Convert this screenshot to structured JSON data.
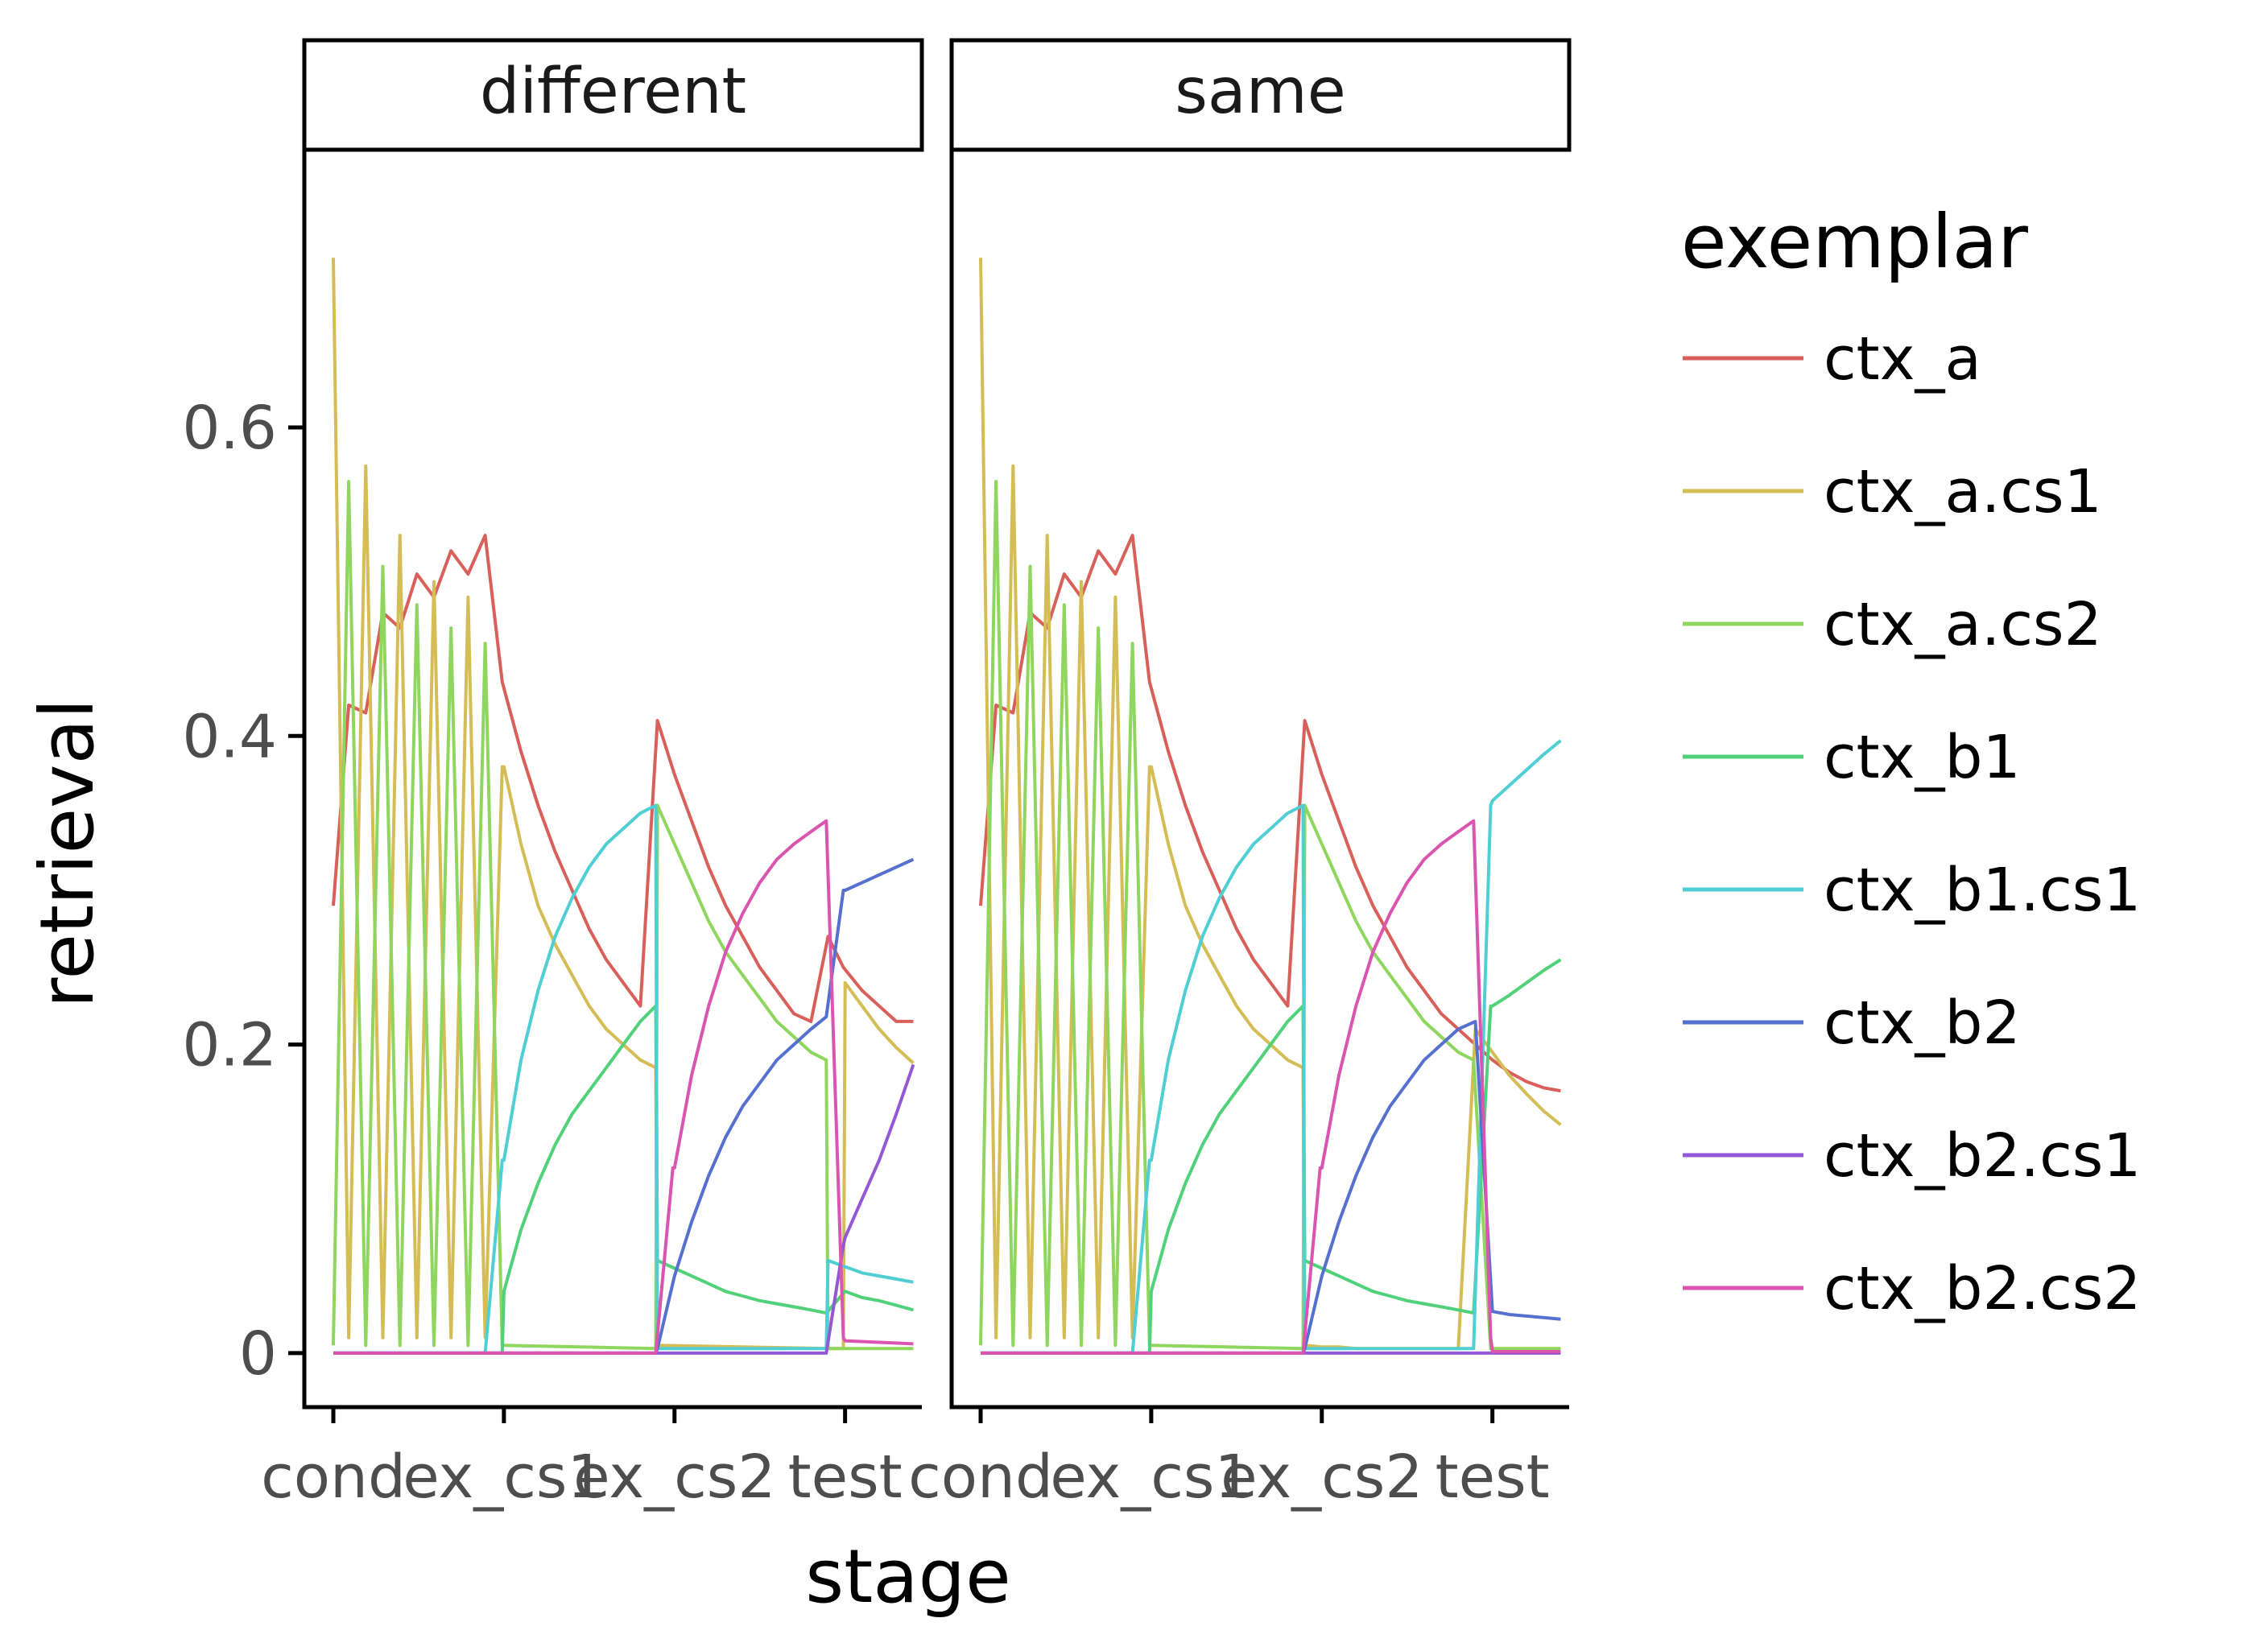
{
  "chart_data": {
    "type": "line",
    "xlabel": "stage",
    "ylabel": "retrieval",
    "x_tick_labels": [
      "cond",
      "ex_cs1",
      "ex_cs2",
      "test"
    ],
    "y_ticks": [
      0,
      0.2,
      0.4,
      0.6
    ],
    "y_tick_labels": [
      "0",
      "0.2",
      "0.4",
      "0.6"
    ],
    "ylim": [
      -0.035,
      0.78
    ],
    "xlim": [
      -0.17,
      3.45
    ],
    "grid": false,
    "legend": {
      "title": "exemplar",
      "placement": "right",
      "entries": [
        "ctx_a",
        "ctx_a.cs1",
        "ctx_a.cs2",
        "ctx_b1",
        "ctx_b1.cs1",
        "ctx_b2",
        "ctx_b2.cs1",
        "ctx_b2.cs2"
      ]
    },
    "colors": {
      "ctx_a": "#d9605a",
      "ctx_a.cs1": "#d4bd55",
      "ctx_a.cs2": "#8fd65e",
      "ctx_b1": "#50d17a",
      "ctx_b1.cs1": "#4fcfd4",
      "ctx_b2": "#5670cf",
      "ctx_b2.cs1": "#9458d4",
      "ctx_b2.cs2": "#d955b0"
    },
    "panels": [
      {
        "label": "different",
        "series": [
          {
            "name": "ctx_a",
            "x": [
              0,
              0.09,
              0.19,
              0.29,
              0.39,
              0.49,
              0.59,
              0.69,
              0.79,
              0.89,
              0.99,
              1.1,
              1.2,
              1.3,
              1.4,
              1.5,
              1.6,
              1.7,
              1.8,
              1.9,
              2.0,
              2.1,
              2.2,
              2.3,
              2.4,
              2.5,
              2.6,
              2.7,
              2.8,
              2.9,
              2.99,
              3.1,
              3.2,
              3.3,
              3.4
            ],
            "y": [
              0.29,
              0.42,
              0.415,
              0.48,
              0.47,
              0.505,
              0.49,
              0.52,
              0.505,
              0.53,
              0.435,
              0.39,
              0.355,
              0.325,
              0.3,
              0.275,
              0.255,
              0.24,
              0.225,
              0.41,
              0.375,
              0.345,
              0.315,
              0.29,
              0.27,
              0.25,
              0.235,
              0.22,
              0.215,
              0.27,
              0.25,
              0.235,
              0.225,
              0.215,
              0.215
            ]
          },
          {
            "name": "ctx_a.cs1",
            "x": [
              0,
              0.09,
              0.19,
              0.29,
              0.39,
              0.49,
              0.59,
              0.69,
              0.79,
              0.89,
              0.99,
              1.0,
              1.1,
              1.2,
              1.3,
              1.4,
              1.5,
              1.6,
              1.7,
              1.8,
              1.89,
              1.9,
              2.9,
              2.99,
              3.0,
              3.1,
              3.2,
              3.3,
              3.4
            ],
            "y": [
              0.71,
              0.01,
              0.575,
              0.01,
              0.53,
              0.01,
              0.5,
              0.01,
              0.49,
              0.01,
              0.38,
              0.38,
              0.33,
              0.29,
              0.265,
              0.245,
              0.225,
              0.21,
              0.2,
              0.19,
              0.185,
              0.005,
              0.003,
              0.003,
              0.24,
              0.225,
              0.21,
              0.198,
              0.188
            ]
          },
          {
            "name": "ctx_a.cs2",
            "x": [
              0,
              0.09,
              0.19,
              0.29,
              0.39,
              0.49,
              0.59,
              0.69,
              0.79,
              0.89,
              0.99,
              1.0,
              1.89,
              1.9,
              2.0,
              2.1,
              2.2,
              2.3,
              2.4,
              2.5,
              2.6,
              2.7,
              2.8,
              2.89,
              2.9,
              3.4
            ],
            "y": [
              0.005,
              0.565,
              0.005,
              0.51,
              0.005,
              0.485,
              0.005,
              0.47,
              0.005,
              0.46,
              0.005,
              0.005,
              0.003,
              0.355,
              0.33,
              0.305,
              0.28,
              0.26,
              0.245,
              0.23,
              0.215,
              0.205,
              0.195,
              0.19,
              0.003,
              0.003
            ]
          },
          {
            "name": "ctx_b1",
            "x": [
              0,
              0.99,
              1.0,
              1.1,
              1.2,
              1.3,
              1.4,
              1.5,
              1.6,
              1.7,
              1.8,
              1.89,
              1.9,
              2.0,
              2.1,
              2.2,
              2.3,
              2.4,
              2.5,
              2.6,
              2.7,
              2.8,
              2.89,
              3.0,
              3.1,
              3.2,
              3.3,
              3.4
            ],
            "y": [
              0,
              0,
              0.04,
              0.08,
              0.11,
              0.135,
              0.155,
              0.17,
              0.185,
              0.2,
              0.215,
              0.225,
              0.06,
              0.055,
              0.05,
              0.045,
              0.04,
              0.037,
              0.034,
              0.032,
              0.03,
              0.028,
              0.026,
              0.04,
              0.036,
              0.034,
              0.031,
              0.028
            ]
          },
          {
            "name": "ctx_b1.cs1",
            "x": [
              0,
              0.89,
              0.99,
              1.0,
              1.1,
              1.2,
              1.3,
              1.4,
              1.5,
              1.6,
              1.7,
              1.8,
              1.89,
              1.9,
              2.89,
              2.9,
              3.0,
              3.1,
              3.2,
              3.3,
              3.4
            ],
            "y": [
              0,
              0,
              0.125,
              0.125,
              0.19,
              0.235,
              0.27,
              0.295,
              0.315,
              0.33,
              0.34,
              0.35,
              0.355,
              0.003,
              0.003,
              0.06,
              0.056,
              0.052,
              0.05,
              0.048,
              0.046
            ]
          },
          {
            "name": "ctx_b2",
            "x": [
              0,
              1.89,
              1.9,
              2.0,
              2.1,
              2.2,
              2.3,
              2.4,
              2.5,
              2.6,
              2.7,
              2.8,
              2.89,
              2.99,
              3.0,
              3.1,
              3.2,
              3.3,
              3.4
            ],
            "y": [
              0,
              0,
              0.003,
              0.05,
              0.085,
              0.115,
              0.14,
              0.16,
              0.175,
              0.19,
              0.2,
              0.21,
              0.218,
              0.3,
              0.3,
              0.305,
              0.31,
              0.315,
              0.32
            ]
          },
          {
            "name": "ctx_b2.cs1",
            "x": [
              0,
              2.89,
              2.99,
              3.0,
              3.1,
              3.2,
              3.3,
              3.4
            ],
            "y": [
              0,
              0,
              0.07,
              0.075,
              0.1,
              0.125,
              0.155,
              0.187
            ]
          },
          {
            "name": "ctx_b2.cs2",
            "x": [
              0,
              1.89,
              1.99,
              2.0,
              2.1,
              2.2,
              2.3,
              2.4,
              2.5,
              2.6,
              2.7,
              2.8,
              2.89,
              2.99,
              3.0,
              3.4
            ],
            "y": [
              0,
              0,
              0.12,
              0.12,
              0.18,
              0.225,
              0.26,
              0.285,
              0.305,
              0.32,
              0.33,
              0.338,
              0.345,
              0.01,
              0.008,
              0.006
            ]
          }
        ]
      },
      {
        "label": "same",
        "series": [
          {
            "name": "ctx_a",
            "x": [
              0,
              0.09,
              0.19,
              0.29,
              0.39,
              0.49,
              0.59,
              0.69,
              0.79,
              0.89,
              0.99,
              1.1,
              1.2,
              1.3,
              1.4,
              1.5,
              1.6,
              1.7,
              1.8,
              1.9,
              2.0,
              2.1,
              2.2,
              2.3,
              2.4,
              2.5,
              2.6,
              2.7,
              2.8,
              2.9,
              3.0,
              3.1,
              3.2,
              3.3,
              3.4
            ],
            "y": [
              0.29,
              0.42,
              0.415,
              0.48,
              0.47,
              0.505,
              0.49,
              0.52,
              0.505,
              0.53,
              0.435,
              0.39,
              0.355,
              0.325,
              0.3,
              0.275,
              0.255,
              0.24,
              0.225,
              0.41,
              0.375,
              0.345,
              0.315,
              0.29,
              0.27,
              0.25,
              0.235,
              0.22,
              0.21,
              0.2,
              0.19,
              0.182,
              0.176,
              0.172,
              0.17
            ]
          },
          {
            "name": "ctx_a.cs1",
            "x": [
              0,
              0.09,
              0.19,
              0.29,
              0.39,
              0.49,
              0.59,
              0.69,
              0.79,
              0.89,
              0.99,
              1.0,
              1.1,
              1.2,
              1.3,
              1.4,
              1.5,
              1.6,
              1.7,
              1.8,
              1.89,
              1.9,
              2.0,
              2.1,
              2.2,
              2.3,
              2.4,
              2.5,
              2.6,
              2.7,
              2.8,
              2.9,
              3.0,
              3.1,
              3.2,
              3.3,
              3.4
            ],
            "y": [
              0.71,
              0.01,
              0.575,
              0.01,
              0.53,
              0.01,
              0.5,
              0.01,
              0.49,
              0.01,
              0.38,
              0.38,
              0.33,
              0.29,
              0.265,
              0.245,
              0.225,
              0.21,
              0.2,
              0.19,
              0.185,
              0.005,
              0.004,
              0.004,
              0.003,
              0.003,
              0.003,
              0.003,
              0.003,
              0.003,
              0.003,
              0.21,
              0.195,
              0.18,
              0.168,
              0.157,
              0.148
            ]
          },
          {
            "name": "ctx_a.cs2",
            "x": [
              0,
              0.09,
              0.19,
              0.29,
              0.39,
              0.49,
              0.59,
              0.69,
              0.79,
              0.89,
              0.99,
              1.0,
              1.89,
              1.9,
              2.0,
              2.1,
              2.2,
              2.3,
              2.4,
              2.5,
              2.6,
              2.7,
              2.8,
              2.89,
              2.99,
              3.0,
              3.4
            ],
            "y": [
              0.005,
              0.565,
              0.005,
              0.51,
              0.005,
              0.485,
              0.005,
              0.47,
              0.005,
              0.46,
              0.005,
              0.005,
              0.003,
              0.355,
              0.33,
              0.305,
              0.28,
              0.26,
              0.245,
              0.23,
              0.215,
              0.205,
              0.195,
              0.19,
              0.003,
              0.003,
              0.003
            ]
          },
          {
            "name": "ctx_b1",
            "x": [
              0,
              0.99,
              1.0,
              1.1,
              1.2,
              1.3,
              1.4,
              1.5,
              1.6,
              1.7,
              1.8,
              1.89,
              1.9,
              2.0,
              2.1,
              2.2,
              2.3,
              2.4,
              2.5,
              2.6,
              2.7,
              2.8,
              2.89,
              2.99,
              3.0,
              3.1,
              3.2,
              3.3,
              3.4
            ],
            "y": [
              0,
              0,
              0.04,
              0.08,
              0.11,
              0.135,
              0.155,
              0.17,
              0.185,
              0.2,
              0.215,
              0.225,
              0.06,
              0.055,
              0.05,
              0.045,
              0.04,
              0.037,
              0.034,
              0.032,
              0.03,
              0.028,
              0.026,
              0.225,
              0.225,
              0.232,
              0.24,
              0.248,
              0.255
            ]
          },
          {
            "name": "ctx_b1.cs1",
            "x": [
              0,
              0.89,
              0.99,
              1.0,
              1.1,
              1.2,
              1.3,
              1.4,
              1.5,
              1.6,
              1.7,
              1.8,
              1.89,
              1.9,
              2.89,
              2.99,
              3.0,
              3.1,
              3.2,
              3.3,
              3.4
            ],
            "y": [
              0,
              0,
              0.125,
              0.125,
              0.19,
              0.235,
              0.27,
              0.295,
              0.315,
              0.33,
              0.34,
              0.35,
              0.355,
              0.003,
              0.003,
              0.355,
              0.358,
              0.368,
              0.378,
              0.388,
              0.397
            ]
          },
          {
            "name": "ctx_b2",
            "x": [
              0,
              1.89,
              1.9,
              2.0,
              2.1,
              2.2,
              2.3,
              2.4,
              2.5,
              2.6,
              2.7,
              2.8,
              2.9,
              3.0,
              3.1,
              3.2,
              3.3,
              3.4
            ],
            "y": [
              0,
              0,
              0.003,
              0.05,
              0.085,
              0.115,
              0.14,
              0.16,
              0.175,
              0.19,
              0.2,
              0.21,
              0.215,
              0.027,
              0.025,
              0.024,
              0.023,
              0.022
            ]
          },
          {
            "name": "ctx_b2.cs1",
            "x": [
              0,
              3.4
            ],
            "y": [
              0,
              0
            ]
          },
          {
            "name": "ctx_b2.cs2",
            "x": [
              0,
              1.89,
              1.99,
              2.0,
              2.1,
              2.2,
              2.3,
              2.4,
              2.5,
              2.6,
              2.7,
              2.8,
              2.89,
              2.99,
              3.0,
              3.4
            ],
            "y": [
              0,
              0,
              0.12,
              0.12,
              0.18,
              0.225,
              0.26,
              0.285,
              0.305,
              0.32,
              0.33,
              0.338,
              0.345,
              0.01,
              0.001,
              0.001
            ]
          }
        ]
      }
    ]
  }
}
